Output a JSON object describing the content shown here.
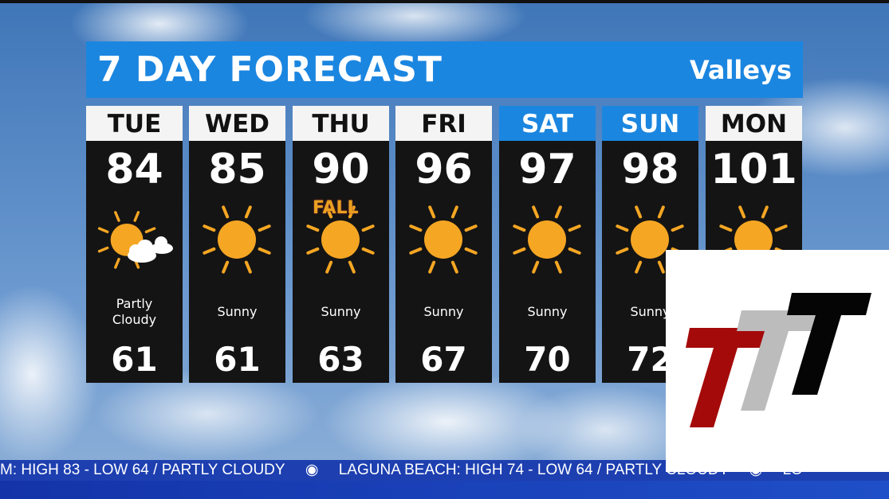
{
  "title": "7 DAY FORECAST",
  "region": "Valleys",
  "days": [
    {
      "day": "TUE",
      "high": "84",
      "low": "61",
      "condition": "Partly Cloudy",
      "icon": "partly-cloudy-icon",
      "weekend": false
    },
    {
      "day": "WED",
      "high": "85",
      "low": "61",
      "condition": "Sunny",
      "icon": "sun-icon",
      "weekend": false
    },
    {
      "day": "THU",
      "high": "90",
      "low": "63",
      "condition": "Sunny",
      "icon": "sun-icon",
      "weekend": false,
      "badge": "FALL"
    },
    {
      "day": "FRI",
      "high": "96",
      "low": "67",
      "condition": "Sunny",
      "icon": "sun-icon",
      "weekend": false
    },
    {
      "day": "SAT",
      "high": "97",
      "low": "70",
      "condition": "Sunny",
      "icon": "sun-icon",
      "weekend": true
    },
    {
      "day": "SUN",
      "high": "98",
      "low": "72",
      "condition": "Sunny",
      "icon": "sun-icon",
      "weekend": true
    },
    {
      "day": "MON",
      "high": "101",
      "low": "",
      "condition": "",
      "icon": "sun-icon",
      "weekend": false
    }
  ],
  "ticker": [
    "M: HIGH 83 - LOW 64 / PARTLY CLOUDY",
    "LAGUNA BEACH: HIGH 74 - LOW 64 / PARTLY CLOUDY",
    "LO"
  ],
  "logo_text": "TTT",
  "colors": {
    "title_bar": "#1b86e0",
    "weekend_header": "#1b86e0",
    "sun": "#f5a623",
    "ticker": "#1d3fb0"
  }
}
